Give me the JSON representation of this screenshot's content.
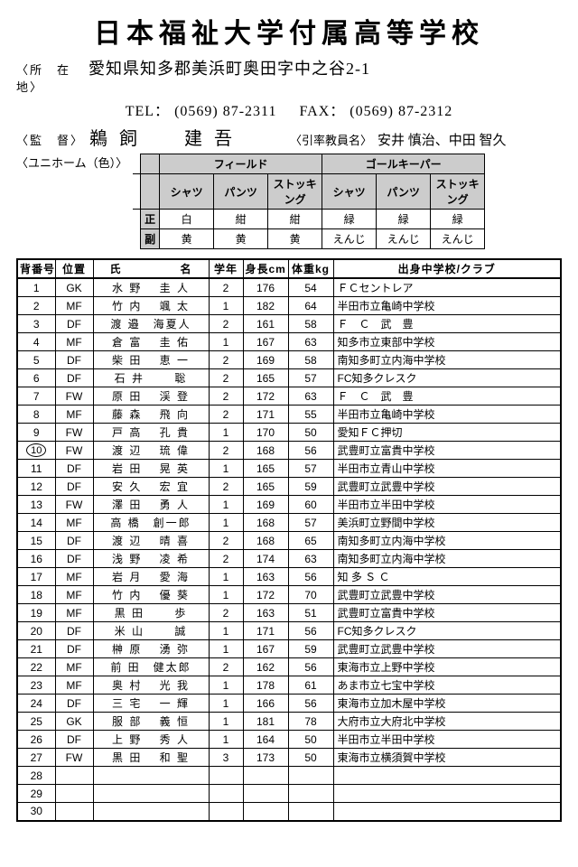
{
  "header": {
    "school_name": "日本福祉大学付属高等学校",
    "address_label": "〈所　在　地〉",
    "address": "愛知県知多郡美浜町奥田字中之谷2-1",
    "tel_label": "TEL：",
    "tel": "(0569) 87-2311",
    "fax_label": "FAX：",
    "fax": "(0569) 87-2312",
    "coach_label": "〈監　督〉",
    "coach_name": "鵜 飼　　建 吾",
    "leader_label": "〈引率教員名〉",
    "leader_name": "安井 慎治、中田 智久",
    "uniform_label": "〈ユニホーム（色）〉"
  },
  "uniform": {
    "groups": [
      "フィールド",
      "ゴールキーパー"
    ],
    "items": [
      "シャツ",
      "パンツ",
      "ストッキング"
    ],
    "row_labels": [
      "正",
      "副"
    ],
    "rows": [
      [
        "白",
        "紺",
        "紺",
        "緑",
        "緑",
        "緑"
      ],
      [
        "黄",
        "黄",
        "黄",
        "えんじ",
        "えんじ",
        "えんじ"
      ]
    ]
  },
  "roster": {
    "columns": [
      "背番号",
      "位置",
      "氏　　　　　名",
      "学年",
      "身長cm",
      "体重kg",
      "出身中学校/クラブ"
    ],
    "captain_number": "10",
    "rows": [
      {
        "num": "1",
        "pos": "GK",
        "name": "水 野　 圭 人",
        "grade": "2",
        "h": "176",
        "w": "54",
        "school": "ＦＣセントレア"
      },
      {
        "num": "2",
        "pos": "MF",
        "name": "竹 内　 颯 太",
        "grade": "1",
        "h": "182",
        "w": "64",
        "school": "半田市立亀崎中学校"
      },
      {
        "num": "3",
        "pos": "DF",
        "name": "渡 邉　海夏人",
        "grade": "2",
        "h": "161",
        "w": "58",
        "school": "Ｆ　Ｃ　武　豊"
      },
      {
        "num": "4",
        "pos": "MF",
        "name": "倉 富　 圭 佑",
        "grade": "1",
        "h": "167",
        "w": "63",
        "school": "知多市立東部中学校"
      },
      {
        "num": "5",
        "pos": "DF",
        "name": "柴 田　 恵 一",
        "grade": "2",
        "h": "169",
        "w": "58",
        "school": "南知多町立内海中学校"
      },
      {
        "num": "6",
        "pos": "DF",
        "name": "石 井　　 聡",
        "grade": "2",
        "h": "165",
        "w": "57",
        "school": "FC知多クレスク"
      },
      {
        "num": "7",
        "pos": "FW",
        "name": "原 田　 渓 登",
        "grade": "2",
        "h": "172",
        "w": "63",
        "school": "Ｆ　Ｃ　武　豊"
      },
      {
        "num": "8",
        "pos": "MF",
        "name": "藤 森　 飛 向",
        "grade": "2",
        "h": "171",
        "w": "55",
        "school": "半田市立亀崎中学校"
      },
      {
        "num": "9",
        "pos": "FW",
        "name": "戸 高　 孔 貴",
        "grade": "1",
        "h": "170",
        "w": "50",
        "school": "愛知ＦＣ押切"
      },
      {
        "num": "10",
        "pos": "FW",
        "name": "渡 辺　 琉 偉",
        "grade": "2",
        "h": "168",
        "w": "56",
        "school": "武豊町立富貴中学校"
      },
      {
        "num": "11",
        "pos": "DF",
        "name": "岩 田　 晃 英",
        "grade": "1",
        "h": "165",
        "w": "57",
        "school": "半田市立青山中学校"
      },
      {
        "num": "12",
        "pos": "DF",
        "name": "安 久　 宏 宜",
        "grade": "2",
        "h": "165",
        "w": "59",
        "school": "武豊町立武豊中学校"
      },
      {
        "num": "13",
        "pos": "FW",
        "name": "澤 田　 勇 人",
        "grade": "1",
        "h": "169",
        "w": "60",
        "school": "半田市立半田中学校"
      },
      {
        "num": "14",
        "pos": "MF",
        "name": "高 橋　創一郎",
        "grade": "1",
        "h": "168",
        "w": "57",
        "school": "美浜町立野間中学校"
      },
      {
        "num": "15",
        "pos": "DF",
        "name": "渡 辺　 晴 喜",
        "grade": "2",
        "h": "168",
        "w": "65",
        "school": "南知多町立内海中学校"
      },
      {
        "num": "16",
        "pos": "DF",
        "name": "浅 野　 凌 希",
        "grade": "2",
        "h": "174",
        "w": "63",
        "school": "南知多町立内海中学校"
      },
      {
        "num": "17",
        "pos": "MF",
        "name": "岩 月　 愛 海",
        "grade": "1",
        "h": "163",
        "w": "56",
        "school": "知 多 Ｓ Ｃ"
      },
      {
        "num": "18",
        "pos": "MF",
        "name": "竹 内　 優 葵",
        "grade": "1",
        "h": "172",
        "w": "70",
        "school": "武豊町立武豊中学校"
      },
      {
        "num": "19",
        "pos": "MF",
        "name": "黒 田　　 歩",
        "grade": "2",
        "h": "163",
        "w": "51",
        "school": "武豊町立富貴中学校"
      },
      {
        "num": "20",
        "pos": "DF",
        "name": "米 山　　 誠",
        "grade": "1",
        "h": "171",
        "w": "56",
        "school": "FC知多クレスク"
      },
      {
        "num": "21",
        "pos": "DF",
        "name": "榊 原　 湧 弥",
        "grade": "1",
        "h": "167",
        "w": "59",
        "school": "武豊町立武豊中学校"
      },
      {
        "num": "22",
        "pos": "MF",
        "name": "前 田　健太郎",
        "grade": "2",
        "h": "162",
        "w": "56",
        "school": "東海市立上野中学校"
      },
      {
        "num": "23",
        "pos": "MF",
        "name": "奥 村　 光 我",
        "grade": "1",
        "h": "178",
        "w": "61",
        "school": "あま市立七宝中学校"
      },
      {
        "num": "24",
        "pos": "DF",
        "name": "三 宅　 一 輝",
        "grade": "1",
        "h": "166",
        "w": "56",
        "school": "東海市立加木屋中学校"
      },
      {
        "num": "25",
        "pos": "GK",
        "name": "服 部　 義 恒",
        "grade": "1",
        "h": "181",
        "w": "78",
        "school": "大府市立大府北中学校"
      },
      {
        "num": "26",
        "pos": "DF",
        "name": "上 野　 秀 人",
        "grade": "1",
        "h": "164",
        "w": "50",
        "school": "半田市立半田中学校"
      },
      {
        "num": "27",
        "pos": "FW",
        "name": "黒 田　 和 聖",
        "grade": "3",
        "h": "173",
        "w": "50",
        "school": "東海市立横須賀中学校"
      },
      {
        "num": "28",
        "pos": "",
        "name": "",
        "grade": "",
        "h": "",
        "w": "",
        "school": ""
      },
      {
        "num": "29",
        "pos": "",
        "name": "",
        "grade": "",
        "h": "",
        "w": "",
        "school": ""
      },
      {
        "num": "30",
        "pos": "",
        "name": "",
        "grade": "",
        "h": "",
        "w": "",
        "school": ""
      }
    ]
  }
}
